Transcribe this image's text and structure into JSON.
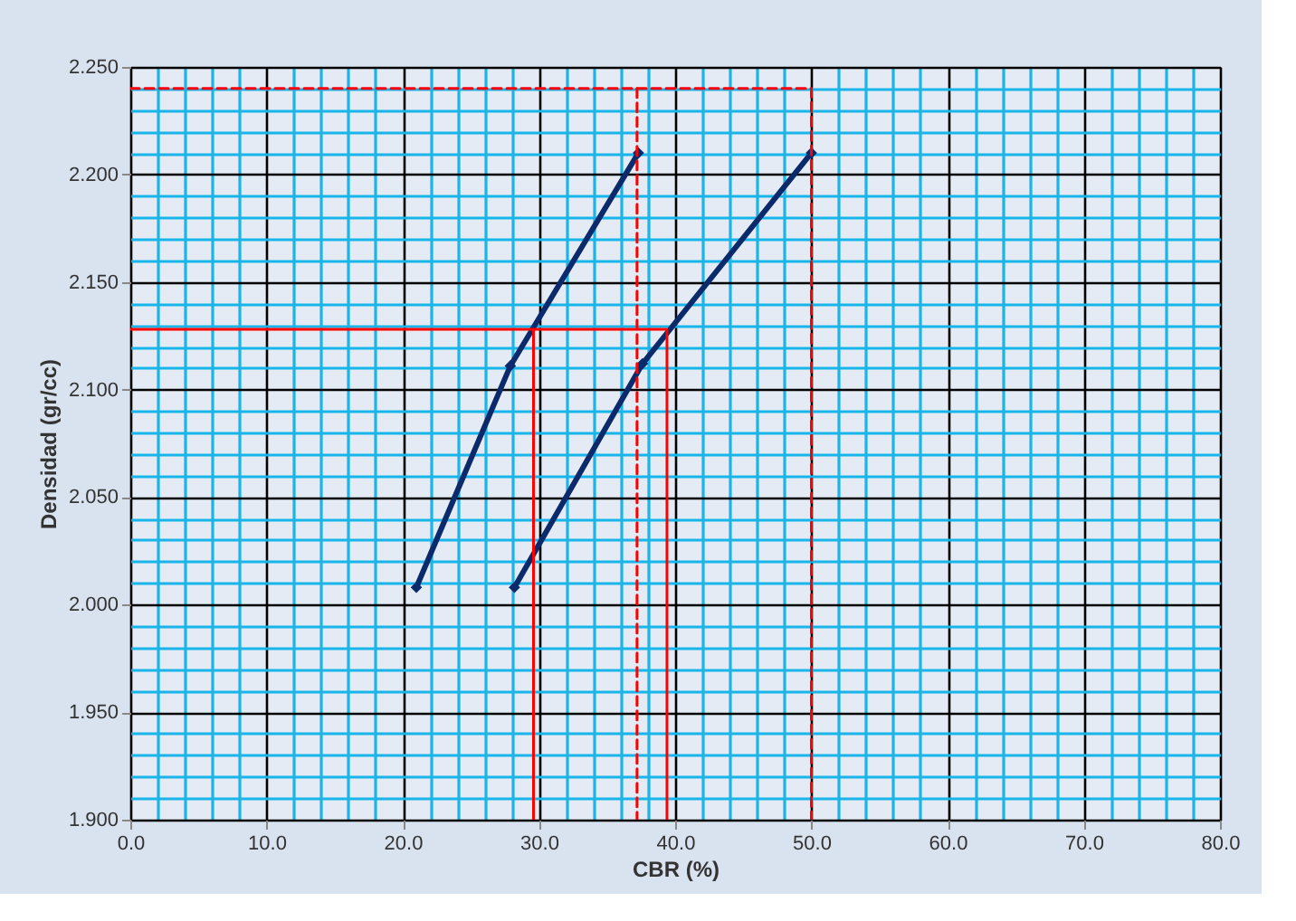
{
  "chart_data": {
    "type": "line",
    "xlabel": "CBR (%)",
    "ylabel": "Densidad (gr/cc)",
    "xlim": [
      0,
      80
    ],
    "ylim": [
      1.9,
      2.25
    ],
    "xticks": [
      {
        "value": 0,
        "label": "0.0"
      },
      {
        "value": 2,
        "label": null
      },
      {
        "value": 4,
        "label": null
      },
      {
        "value": 6,
        "label": null
      },
      {
        "value": 8,
        "label": null
      },
      {
        "value": 10,
        "label": "10.0"
      },
      {
        "value": 12,
        "label": null
      },
      {
        "value": 14,
        "label": null
      },
      {
        "value": 16,
        "label": null
      },
      {
        "value": 18,
        "label": null
      },
      {
        "value": 20,
        "label": "20.0"
      },
      {
        "value": 22,
        "label": null
      },
      {
        "value": 24,
        "label": null
      },
      {
        "value": 26,
        "label": null
      },
      {
        "value": 28,
        "label": null
      },
      {
        "value": 30,
        "label": "30.0"
      },
      {
        "value": 32,
        "label": null
      },
      {
        "value": 34,
        "label": null
      },
      {
        "value": 36,
        "label": null
      },
      {
        "value": 38,
        "label": null
      },
      {
        "value": 40,
        "label": "40.0"
      },
      {
        "value": 42,
        "label": null
      },
      {
        "value": 44,
        "label": null
      },
      {
        "value": 46,
        "label": null
      },
      {
        "value": 48,
        "label": null
      },
      {
        "value": 50,
        "label": "50.0"
      },
      {
        "value": 52,
        "label": null
      },
      {
        "value": 54,
        "label": null
      },
      {
        "value": 56,
        "label": null
      },
      {
        "value": 58,
        "label": null
      },
      {
        "value": 60,
        "label": "60.0"
      },
      {
        "value": 62,
        "label": null
      },
      {
        "value": 64,
        "label": null
      },
      {
        "value": 66,
        "label": null
      },
      {
        "value": 68,
        "label": null
      },
      {
        "value": 70,
        "label": "70.0"
      },
      {
        "value": 72,
        "label": null
      },
      {
        "value": 74,
        "label": null
      },
      {
        "value": 76,
        "label": null
      },
      {
        "value": 78,
        "label": null
      },
      {
        "value": 80,
        "label": "80.0"
      }
    ],
    "yticks": [
      {
        "value": 1.9,
        "label": "1.900"
      },
      {
        "value": 1.91,
        "label": null
      },
      {
        "value": 1.92,
        "label": null
      },
      {
        "value": 1.93,
        "label": null
      },
      {
        "value": 1.94,
        "label": null
      },
      {
        "value": 1.95,
        "label": "1.950"
      },
      {
        "value": 1.96,
        "label": null
      },
      {
        "value": 1.97,
        "label": null
      },
      {
        "value": 1.98,
        "label": null
      },
      {
        "value": 1.99,
        "label": null
      },
      {
        "value": 2.0,
        "label": "2.000"
      },
      {
        "value": 2.01,
        "label": null
      },
      {
        "value": 2.02,
        "label": null
      },
      {
        "value": 2.03,
        "label": null
      },
      {
        "value": 2.04,
        "label": null
      },
      {
        "value": 2.05,
        "label": "2.050"
      },
      {
        "value": 2.06,
        "label": null
      },
      {
        "value": 2.07,
        "label": null
      },
      {
        "value": 2.08,
        "label": null
      },
      {
        "value": 2.09,
        "label": null
      },
      {
        "value": 2.1,
        "label": "2.100"
      },
      {
        "value": 2.11,
        "label": null
      },
      {
        "value": 2.12,
        "label": null
      },
      {
        "value": 2.13,
        "label": null
      },
      {
        "value": 2.14,
        "label": null
      },
      {
        "value": 2.15,
        "label": "2.150"
      },
      {
        "value": 2.16,
        "label": null
      },
      {
        "value": 2.17,
        "label": null
      },
      {
        "value": 2.18,
        "label": null
      },
      {
        "value": 2.19,
        "label": null
      },
      {
        "value": 2.2,
        "label": "2.200"
      },
      {
        "value": 2.21,
        "label": null
      },
      {
        "value": 2.22,
        "label": null
      },
      {
        "value": 2.23,
        "label": null
      },
      {
        "value": 2.24,
        "label": null
      },
      {
        "value": 2.25,
        "label": "2.250"
      }
    ],
    "grid": true,
    "series": [
      {
        "color": "#0b2a6b",
        "marker": "diamond",
        "line_style": "solid",
        "x": [
          21.0,
          27.9,
          37.3
        ],
        "values": [
          2.008,
          2.111,
          2.21
        ]
      },
      {
        "color": "#0b2a6b",
        "marker": "diamond",
        "line_style": "solid",
        "x": [
          28.2,
          37.6,
          50.0
        ],
        "values": [
          2.008,
          2.112,
          2.21
        ]
      },
      {
        "color": "#ff0000",
        "marker": "none",
        "line_style": "solid",
        "x": [
          0,
          39.4,
          39.4
        ],
        "values": [
          2.128,
          2.128,
          1.9
        ]
      },
      {
        "color": "#ff0000",
        "marker": "none",
        "line_style": "solid",
        "x": [
          29.6,
          29.6
        ],
        "values": [
          2.128,
          1.9
        ]
      },
      {
        "color": "#ff0000",
        "marker": "none",
        "line_style": "dashed",
        "x": [
          0,
          50,
          50
        ],
        "values": [
          2.24,
          2.24,
          1.9
        ]
      },
      {
        "color": "#ff0000",
        "marker": "none",
        "line_style": "dashed",
        "x": [
          37.2,
          37.2
        ],
        "values": [
          2.24,
          1.9
        ]
      }
    ]
  }
}
